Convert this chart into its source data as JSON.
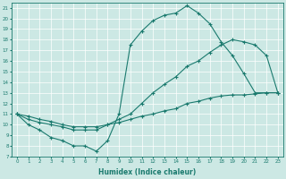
{
  "xlabel": "Humidex (Indice chaleur)",
  "bg_color": "#cce8e4",
  "line_color": "#1a7a6e",
  "xlim": [
    -0.5,
    23.5
  ],
  "ylim": [
    7,
    21.5
  ],
  "yticks": [
    7,
    8,
    9,
    10,
    11,
    12,
    13,
    14,
    15,
    16,
    17,
    18,
    19,
    20,
    21
  ],
  "xticks": [
    0,
    1,
    2,
    3,
    4,
    5,
    6,
    7,
    8,
    9,
    10,
    11,
    12,
    13,
    14,
    15,
    16,
    17,
    18,
    19,
    20,
    21,
    22,
    23
  ],
  "curve1_x": [
    0,
    1,
    2,
    3,
    4,
    5,
    6,
    7,
    8,
    9,
    10,
    11,
    12,
    13,
    14,
    15,
    16,
    17,
    18,
    19,
    20,
    21,
    22,
    23
  ],
  "curve1_y": [
    11.0,
    10.0,
    9.5,
    8.8,
    8.5,
    8.0,
    8.0,
    7.5,
    8.5,
    11.0,
    17.5,
    18.8,
    19.8,
    20.3,
    20.5,
    21.2,
    20.5,
    19.5,
    17.8,
    16.5,
    14.8,
    13.0,
    13.0,
    13.0
  ],
  "curve2_x": [
    0,
    1,
    2,
    3,
    4,
    5,
    6,
    7,
    8,
    9,
    10,
    11,
    12,
    13,
    14,
    15,
    16,
    17,
    18,
    19,
    20,
    21,
    22,
    23
  ],
  "curve2_y": [
    11.0,
    10.5,
    10.2,
    10.0,
    9.8,
    9.5,
    9.5,
    9.5,
    10.0,
    10.5,
    11.0,
    12.0,
    13.0,
    13.8,
    14.5,
    15.5,
    16.0,
    16.8,
    17.5,
    18.0,
    17.8,
    17.5,
    16.5,
    13.0
  ],
  "curve3_x": [
    0,
    1,
    2,
    3,
    4,
    5,
    6,
    7,
    8,
    9,
    10,
    11,
    12,
    13,
    14,
    15,
    16,
    17,
    18,
    19,
    20,
    21,
    22,
    23
  ],
  "curve3_y": [
    11.0,
    10.8,
    10.5,
    10.3,
    10.0,
    9.8,
    9.8,
    9.8,
    10.0,
    10.2,
    10.5,
    10.8,
    11.0,
    11.3,
    11.5,
    12.0,
    12.2,
    12.5,
    12.7,
    12.8,
    12.8,
    12.9,
    13.0,
    13.0
  ]
}
